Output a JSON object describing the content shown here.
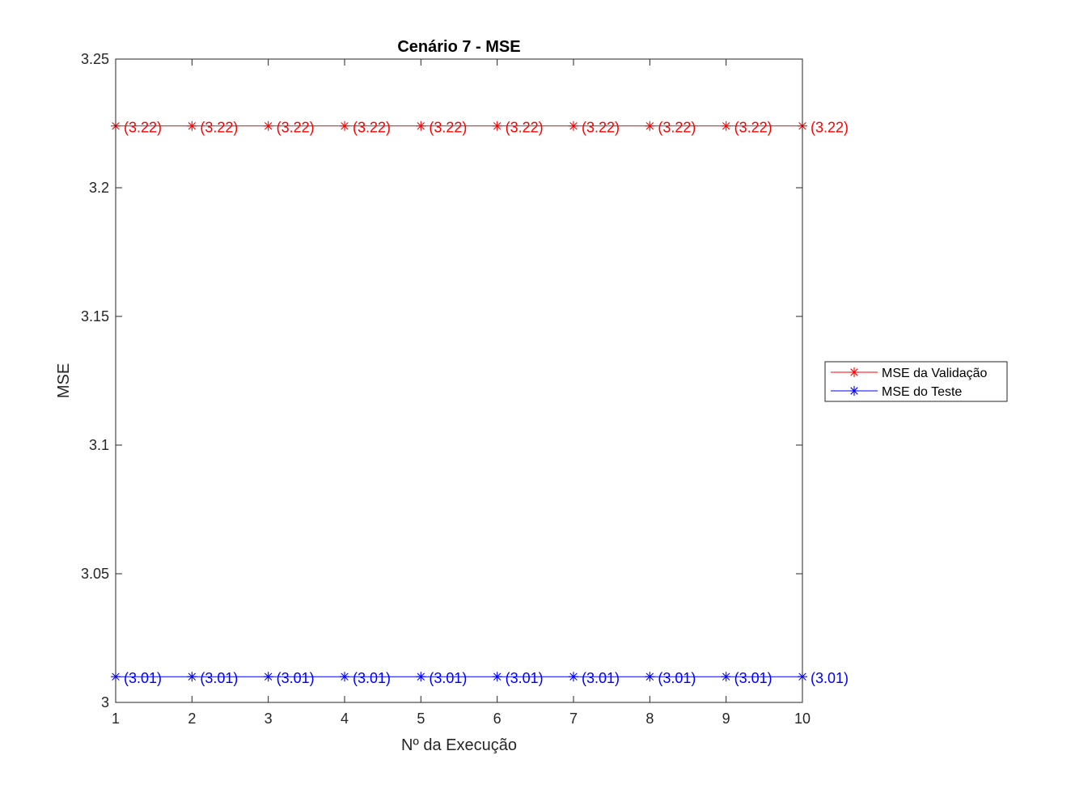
{
  "chart_data": {
    "type": "line",
    "title": "Cenário 7 - MSE",
    "xlabel": "Nº da Execução",
    "ylabel": "MSE",
    "x": [
      1,
      2,
      3,
      4,
      5,
      6,
      7,
      8,
      9,
      10
    ],
    "xlim": [
      1,
      10
    ],
    "ylim": [
      3,
      3.25
    ],
    "xticks": [
      "1",
      "2",
      "3",
      "4",
      "5",
      "6",
      "7",
      "8",
      "9",
      "10"
    ],
    "yticks": [
      "3",
      "3.05",
      "3.1",
      "3.15",
      "3.2",
      "3.25"
    ],
    "grid": false,
    "legend_position": "outside-right",
    "series": [
      {
        "name": "MSE da Validação",
        "color": "#ff0000",
        "marker": "asterisk",
        "values": [
          3.224,
          3.224,
          3.224,
          3.224,
          3.224,
          3.224,
          3.224,
          3.224,
          3.224,
          3.224
        ],
        "labels": [
          "(3.22)",
          "(3.22)",
          "(3.22)",
          "(3.22)",
          "(3.22)",
          "(3.22)",
          "(3.22)",
          "(3.22)",
          "(3.22)",
          "(3.22)"
        ]
      },
      {
        "name": "MSE do Teste",
        "color": "#0000ff",
        "marker": "asterisk",
        "values": [
          3.01,
          3.01,
          3.01,
          3.01,
          3.01,
          3.01,
          3.01,
          3.01,
          3.01,
          3.01
        ],
        "labels": [
          "(3.01)",
          "(3.01)",
          "(3.01)",
          "(3.01)",
          "(3.01)",
          "(3.01)",
          "(3.01)",
          "(3.01)",
          "(3.01)",
          "(3.01)"
        ]
      }
    ]
  }
}
